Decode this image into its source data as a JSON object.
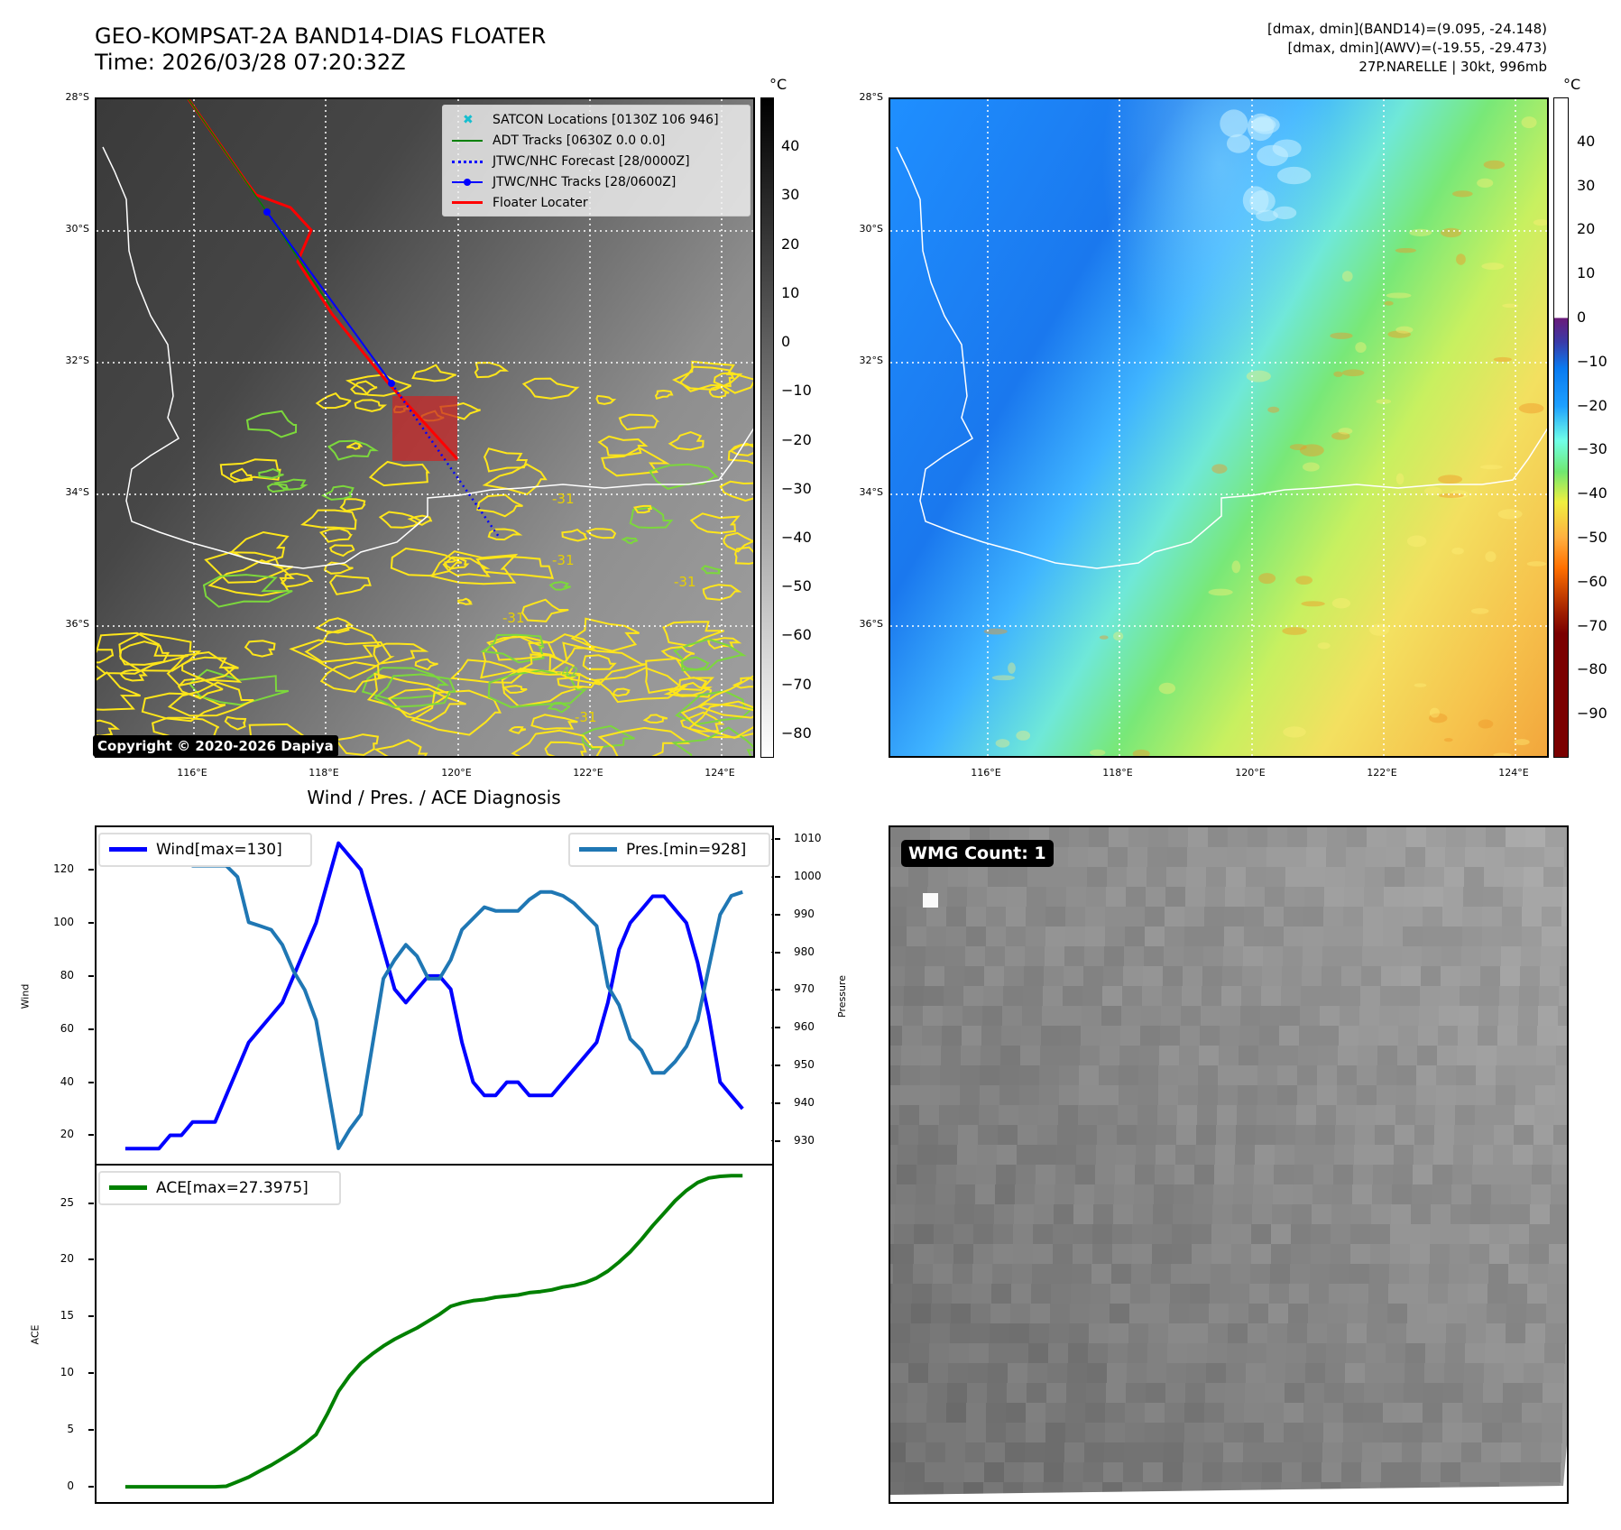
{
  "header": {
    "title": "GEO-KOMPSAT-2A BAND14-DIAS FLOATER",
    "time": "Time: 2026/03/28 07:20:32Z"
  },
  "info": {
    "line1": "[dmax, dmin](BAND14)=(9.095, -24.148)",
    "line2": "[dmax, dmin](AWV)=(-19.55, -29.473)",
    "line3": "27P.NARELLE | 30kt, 996mb"
  },
  "maps": {
    "lat_labels": [
      "28°S",
      "30°S",
      "32°S",
      "34°S",
      "36°S"
    ],
    "lon_labels": [
      "116°E",
      "118°E",
      "120°E",
      "122°E",
      "124°E"
    ],
    "contour_labels": [
      "-31",
      "-42"
    ],
    "left_colorbar": {
      "unit": "°C",
      "ticks": [
        40,
        30,
        20,
        10,
        0,
        -10,
        -20,
        -30,
        -40,
        -50,
        -60,
        -70,
        -80
      ],
      "range": [
        -85,
        50
      ]
    },
    "right_colorbar": {
      "unit": "°C",
      "ticks": [
        40,
        30,
        20,
        10,
        0,
        -10,
        -20,
        -30,
        -40,
        -50,
        -60,
        -70,
        -80,
        -90
      ],
      "range": [
        -100,
        50
      ]
    },
    "legend": [
      {
        "label": "SATCON Locations [0130Z 106 946]",
        "color": "#17becf"
      },
      {
        "label": "ADT Tracks [0630Z 0.0 0.0]",
        "color": "#008000"
      },
      {
        "label": "JTWC/NHC Forecast [28/0000Z]",
        "color": "#0000ff"
      },
      {
        "label": "JTWC/NHC Tracks [28/0600Z]",
        "color": "#0000ff"
      },
      {
        "label": "Floater Locater",
        "color": "#ff0000"
      }
    ],
    "copyright": "Copyright © 2020-2026 Dapiya"
  },
  "diagnosis_title": "Wind / Pres. / ACE Diagnosis",
  "chart_data": [
    {
      "type": "line",
      "title": "Wind / Pres. / ACE Diagnosis",
      "ylabel": "Wind",
      "ylabel_right": "Pressure",
      "ylim": [
        9.3,
        136
      ],
      "ylim_right": [
        923.9,
        1013.2
      ],
      "xlim": [
        -2.56,
        57.64
      ],
      "yticks": [
        20,
        40,
        60,
        80,
        100,
        120
      ],
      "yticks_right": [
        930,
        940,
        950,
        960,
        970,
        980,
        990,
        1000,
        1010
      ],
      "series": [
        {
          "name": "Wind[max=130]",
          "axis": "left",
          "color": "#0000ff",
          "values": [
            15,
            15,
            15,
            15,
            20,
            20,
            25,
            25,
            25,
            35,
            45,
            55,
            60,
            65,
            70,
            80,
            90,
            100,
            115,
            130,
            125,
            120,
            105,
            90,
            75,
            70,
            75,
            80,
            80,
            75,
            55,
            40,
            35,
            35,
            40,
            40,
            35,
            35,
            35,
            40,
            45,
            50,
            55,
            70,
            90,
            100,
            105,
            110,
            110,
            105,
            100,
            85,
            65,
            40,
            35,
            30
          ]
        },
        {
          "name": "Pres.[min=928]",
          "axis": "right",
          "color": "#1f77b4",
          "values": [
            1010,
            1010,
            1010,
            1005,
            1006,
            1005,
            1003,
            1003,
            1003,
            1003,
            1000,
            988,
            987,
            986,
            982,
            975,
            970,
            962,
            945,
            928,
            933,
            937,
            955,
            973,
            978,
            982,
            979,
            973,
            973,
            978,
            986,
            989,
            992,
            991,
            991,
            991,
            994,
            996,
            996,
            995,
            993,
            990,
            987,
            971,
            966,
            957,
            954,
            948,
            948,
            951,
            955,
            962,
            976,
            990,
            995,
            996
          ]
        }
      ]
    },
    {
      "type": "line",
      "ylabel": "ACE",
      "ylim": [
        -1.34,
        28.3
      ],
      "xlim": [
        -2.56,
        57.64
      ],
      "yticks": [
        0,
        5,
        10,
        15,
        20,
        25
      ],
      "series": [
        {
          "name": "ACE[max=27.3975]",
          "color": "#008000",
          "values": [
            0,
            0,
            0,
            0,
            0,
            0,
            0,
            0,
            0,
            0.05,
            0.45,
            0.85,
            1.4,
            1.9,
            2.5,
            3.1,
            3.8,
            4.6,
            6.4,
            8.4,
            9.8,
            10.9,
            11.7,
            12.4,
            13.0,
            13.5,
            14.0,
            14.6,
            15.2,
            15.9,
            16.2,
            16.4,
            16.5,
            16.7,
            16.8,
            16.9,
            17.1,
            17.2,
            17.35,
            17.6,
            17.75,
            18.0,
            18.4,
            19.0,
            19.8,
            20.7,
            21.8,
            23.0,
            24.1,
            25.2,
            26.1,
            26.8,
            27.2,
            27.35,
            27.4,
            27.4
          ]
        }
      ]
    }
  ],
  "wmg": {
    "label": "WMG Count: 1"
  }
}
